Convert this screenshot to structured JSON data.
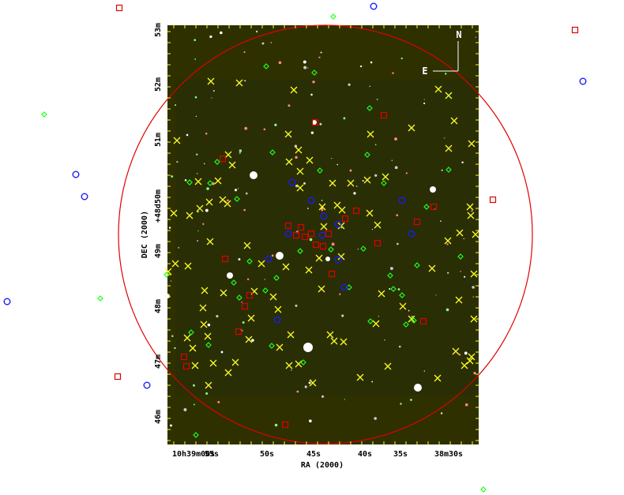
{
  "axes": {
    "x_label": "RA (2000)",
    "y_label": "DEC (2000)",
    "x_tick_labels": [
      "10h39m00s",
      "55s",
      "50s",
      "45s",
      "40s",
      "35s",
      "38m30s"
    ],
    "y_tick_labels": [
      "53m",
      "52m",
      "51m",
      "+48d50m",
      "49m",
      "48m",
      "47m",
      "46m"
    ]
  },
  "compass": {
    "north": "N",
    "east": "E"
  }
}
